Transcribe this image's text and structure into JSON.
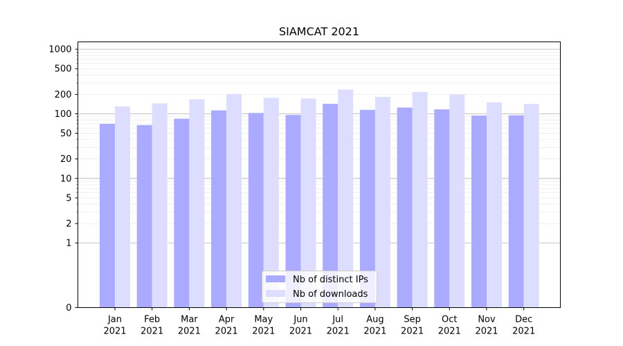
{
  "chart_data": {
    "type": "bar",
    "title": "SIAMCAT 2021",
    "xlabel": "",
    "ylabel": "",
    "y_scale": "symlog",
    "ylim": [
      0,
      1300
    ],
    "yticks": [
      {
        "value": 0,
        "label": "0"
      },
      {
        "value": 1,
        "label": "1"
      },
      {
        "value": 2,
        "label": "2"
      },
      {
        "value": 5,
        "label": "5"
      },
      {
        "value": 10,
        "label": "10"
      },
      {
        "value": 20,
        "label": "20"
      },
      {
        "value": 50,
        "label": "50"
      },
      {
        "value": 100,
        "label": "100"
      },
      {
        "value": 200,
        "label": "200"
      },
      {
        "value": 500,
        "label": "500"
      },
      {
        "value": 1000,
        "label": "1000"
      }
    ],
    "categories": [
      {
        "month": "Jan",
        "year": "2021"
      },
      {
        "month": "Feb",
        "year": "2021"
      },
      {
        "month": "Mar",
        "year": "2021"
      },
      {
        "month": "Apr",
        "year": "2021"
      },
      {
        "month": "May",
        "year": "2021"
      },
      {
        "month": "Jun",
        "year": "2021"
      },
      {
        "month": "Jul",
        "year": "2021"
      },
      {
        "month": "Aug",
        "year": "2021"
      },
      {
        "month": "Sep",
        "year": "2021"
      },
      {
        "month": "Oct",
        "year": "2021"
      },
      {
        "month": "Nov",
        "year": "2021"
      },
      {
        "month": "Dec",
        "year": "2021"
      }
    ],
    "series": [
      {
        "name": "Nb of distinct IPs",
        "color": "#aaaaff",
        "values": [
          70,
          67,
          84,
          113,
          103,
          96,
          143,
          115,
          125,
          117,
          94,
          95
        ]
      },
      {
        "name": "Nb of downloads",
        "color": "#ddddff",
        "values": [
          130,
          145,
          168,
          203,
          177,
          173,
          238,
          183,
          218,
          200,
          150,
          142
        ]
      }
    ],
    "grid": true,
    "legend_position": "lower-center"
  }
}
